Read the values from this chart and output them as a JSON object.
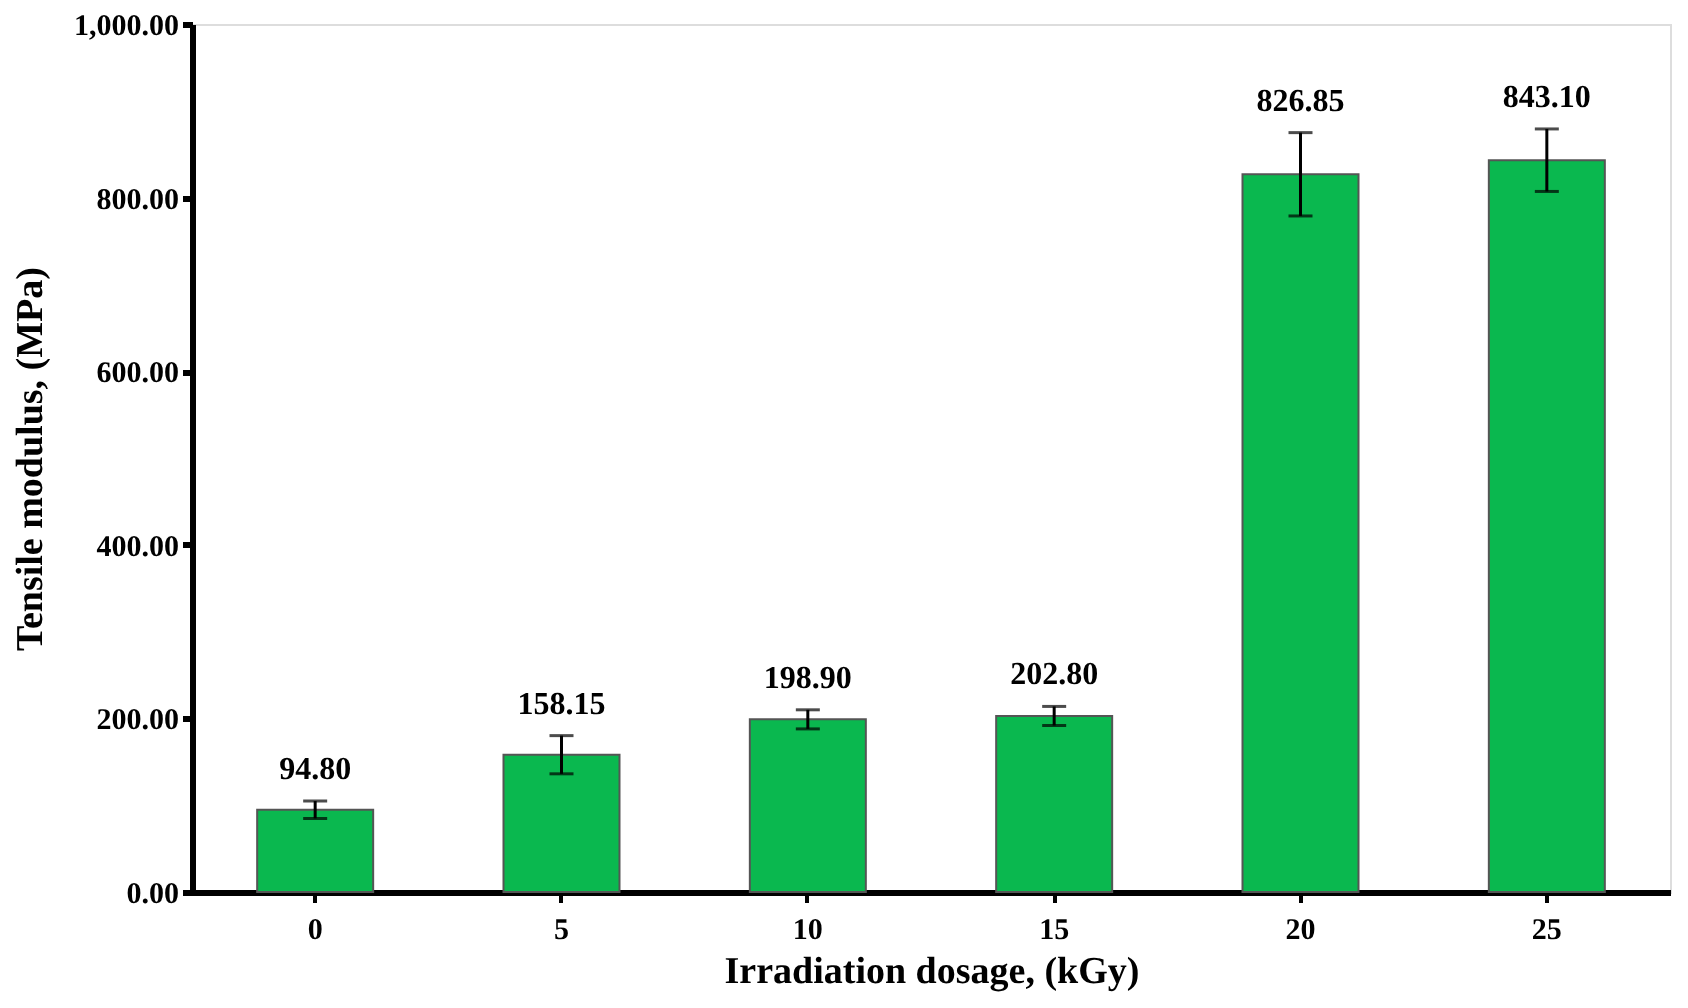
{
  "chart_data": {
    "type": "bar",
    "xlabel": "Irradiation dosage, (kGy)",
    "ylabel": "Tensile modulus, (MPa)",
    "categories": [
      "0",
      "5",
      "10",
      "15",
      "20",
      "25"
    ],
    "values": [
      94.8,
      158.15,
      198.9,
      202.8,
      826.85,
      843.1
    ],
    "errors": [
      10,
      22,
      11,
      11,
      48,
      36
    ],
    "value_labels": [
      "94.80",
      "158.15",
      "198.90",
      "202.80",
      "826.85",
      "843.10"
    ],
    "color": "#0ab84f",
    "grid": false,
    "ylim": [
      0,
      1000
    ],
    "yticks": [
      {
        "value": 0,
        "label": "0.00"
      },
      {
        "value": 200,
        "label": "200.00"
      },
      {
        "value": 400,
        "label": "400.00"
      },
      {
        "value": 600,
        "label": "600.00"
      },
      {
        "value": 800,
        "label": "800.00"
      },
      {
        "value": 1000,
        "label": "1,000.00"
      }
    ]
  }
}
